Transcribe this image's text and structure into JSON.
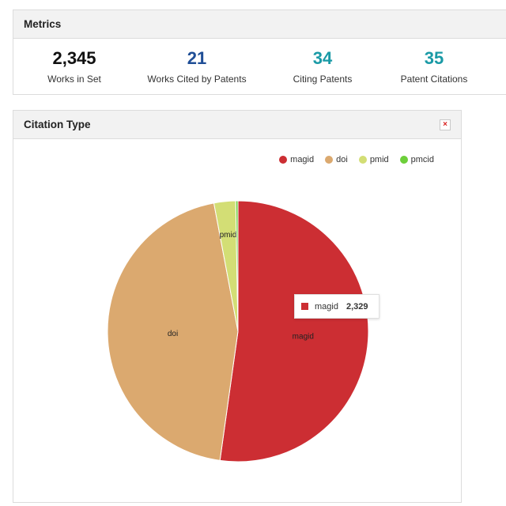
{
  "metrics": {
    "title": "Metrics",
    "items": [
      {
        "value": "2,345",
        "label": "Works in Set",
        "color": "#111111"
      },
      {
        "value": "21",
        "label": "Works Cited by Patents",
        "color": "#1f4e96"
      },
      {
        "value": "34",
        "label": "Citing Patents",
        "color": "#1a9aa6"
      },
      {
        "value": "35",
        "label": "Patent Citations",
        "color": "#1a9aa6"
      }
    ]
  },
  "citation": {
    "title": "Citation Type",
    "close_icon": "×"
  },
  "tooltip": {
    "label": "magid",
    "value": "2,329",
    "color": "#cc2e33"
  },
  "chart_data": {
    "type": "pie",
    "title": "Citation Type",
    "legend_position": "top-right",
    "slices": [
      {
        "label": "magid",
        "value": 2329,
        "color": "#cc2e33"
      },
      {
        "label": "doi",
        "value": 2000,
        "color": "#dba96f"
      },
      {
        "label": "pmid",
        "value": 120,
        "color": "#d3de75"
      },
      {
        "label": "pmcid",
        "value": 12,
        "color": "#6dcf3a"
      }
    ]
  }
}
